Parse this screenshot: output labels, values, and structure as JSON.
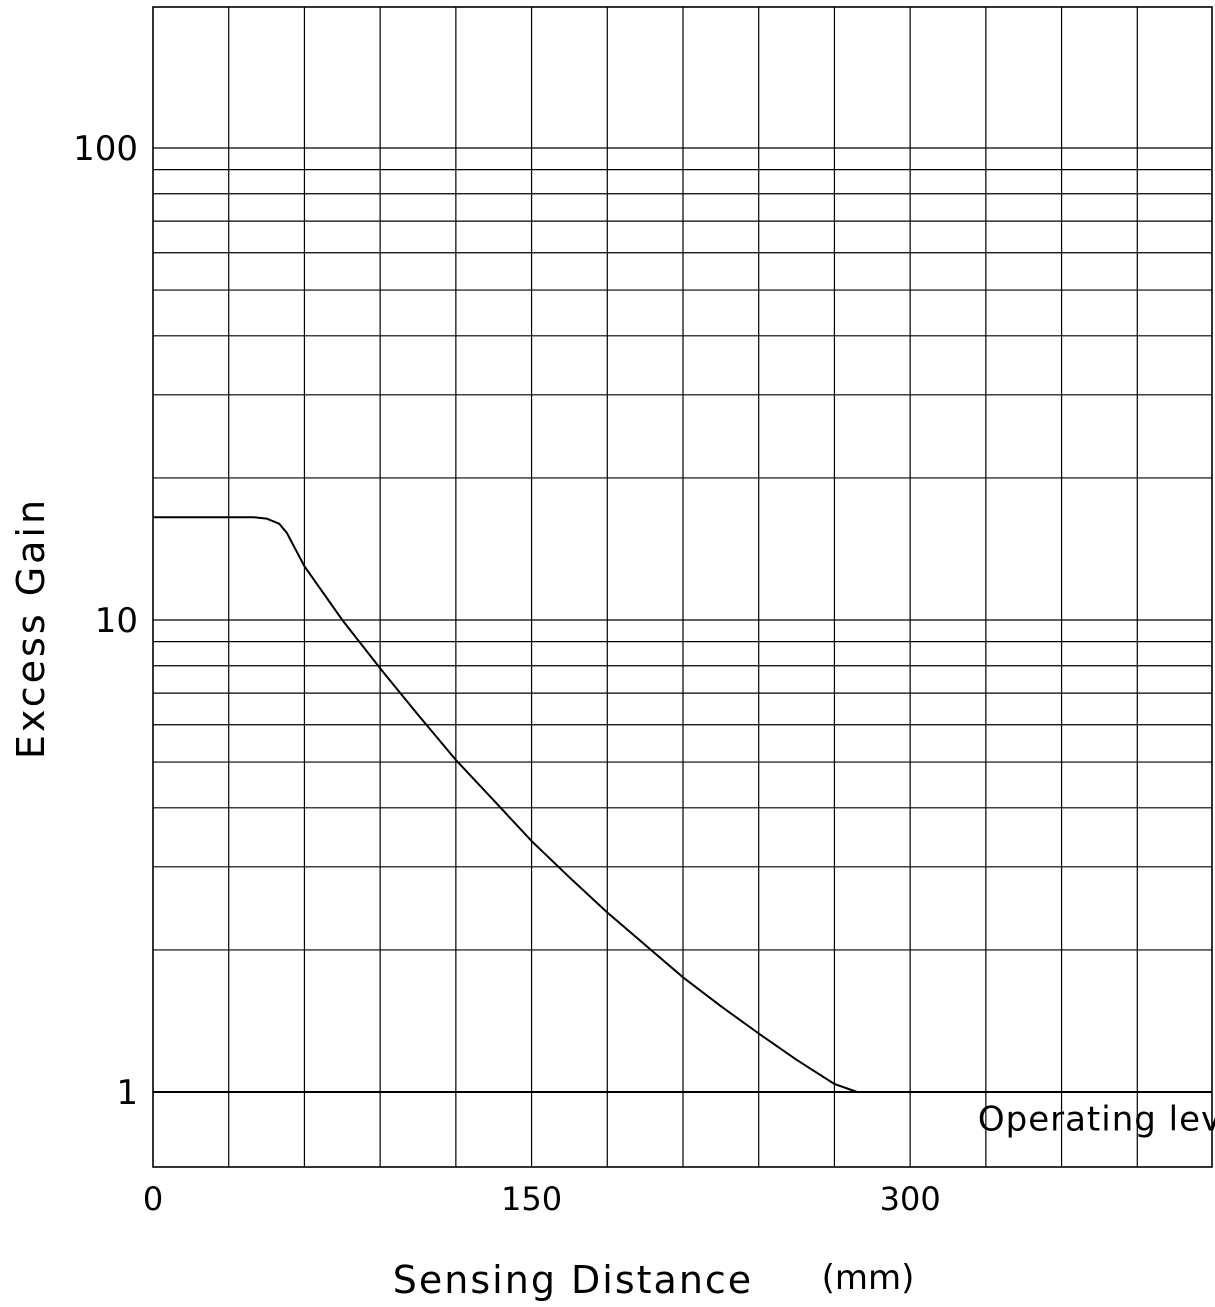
{
  "chart_data": {
    "type": "line",
    "title": "",
    "xlabel": "Sensing Distance",
    "xunit": "(mm)",
    "ylabel": "Excess Gain",
    "xlim": [
      0,
      420
    ],
    "ylim": [
      0.7,
      200
    ],
    "yscale": "log",
    "grid": true,
    "x_ticks": [
      {
        "value": 0,
        "label": "0"
      },
      {
        "value": 150,
        "label": "150"
      },
      {
        "value": 300,
        "label": "300"
      }
    ],
    "y_ticks": [
      {
        "value": 1,
        "label": "1"
      },
      {
        "value": 10,
        "label": "10"
      },
      {
        "value": 100,
        "label": "100"
      }
    ],
    "series": [
      {
        "x": [
          0,
          30,
          40,
          45,
          50,
          53,
          60,
          75,
          90,
          105,
          120,
          135,
          150,
          165,
          180,
          195,
          210,
          225,
          240,
          255,
          270,
          279
        ],
        "values": [
          16.5,
          16.5,
          16.5,
          16.4,
          16.0,
          15.3,
          13.0,
          10.0,
          7.9,
          6.3,
          5.05,
          4.15,
          3.4,
          2.85,
          2.4,
          2.05,
          1.75,
          1.52,
          1.33,
          1.17,
          1.04,
          1.0
        ]
      }
    ],
    "annotations": [
      {
        "text": "Operating level",
        "x": 330,
        "y": 0.95
      }
    ],
    "reference_lines": [
      {
        "axis": "y",
        "value": 1,
        "label": "Operating level"
      }
    ]
  }
}
